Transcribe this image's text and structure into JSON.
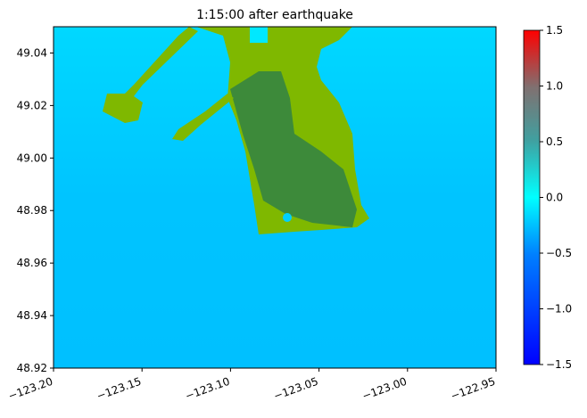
{
  "chart_data": {
    "type": "field",
    "title": "1:15:00 after earthquake",
    "xlim": [
      -123.2,
      -122.95
    ],
    "ylim": [
      48.92,
      49.05
    ],
    "xticks": [
      {
        "value": -123.2,
        "label": "−123.20"
      },
      {
        "value": -123.15,
        "label": "−123.15"
      },
      {
        "value": -123.1,
        "label": "−123.10"
      },
      {
        "value": -123.05,
        "label": "−123.05"
      },
      {
        "value": -123.0,
        "label": "−123.00"
      },
      {
        "value": -122.95,
        "label": "−122.95"
      }
    ],
    "yticks": [
      48.92,
      48.94,
      48.96,
      48.98,
      {
        "value": 49.0,
        "label": "49.00"
      },
      49.02,
      49.04
    ],
    "colorbar": {
      "clim": [
        -1.5,
        1.5
      ],
      "ticks": [
        {
          "value": -1.5,
          "label": "−1.5"
        },
        {
          "value": -1.0,
          "label": "−1.0"
        },
        {
          "value": -0.5,
          "label": "−0.5"
        },
        {
          "value": 0.0,
          "label": "0.0"
        },
        0.5,
        {
          "value": 1.0,
          "label": "1.0"
        },
        1.5
      ]
    }
  }
}
